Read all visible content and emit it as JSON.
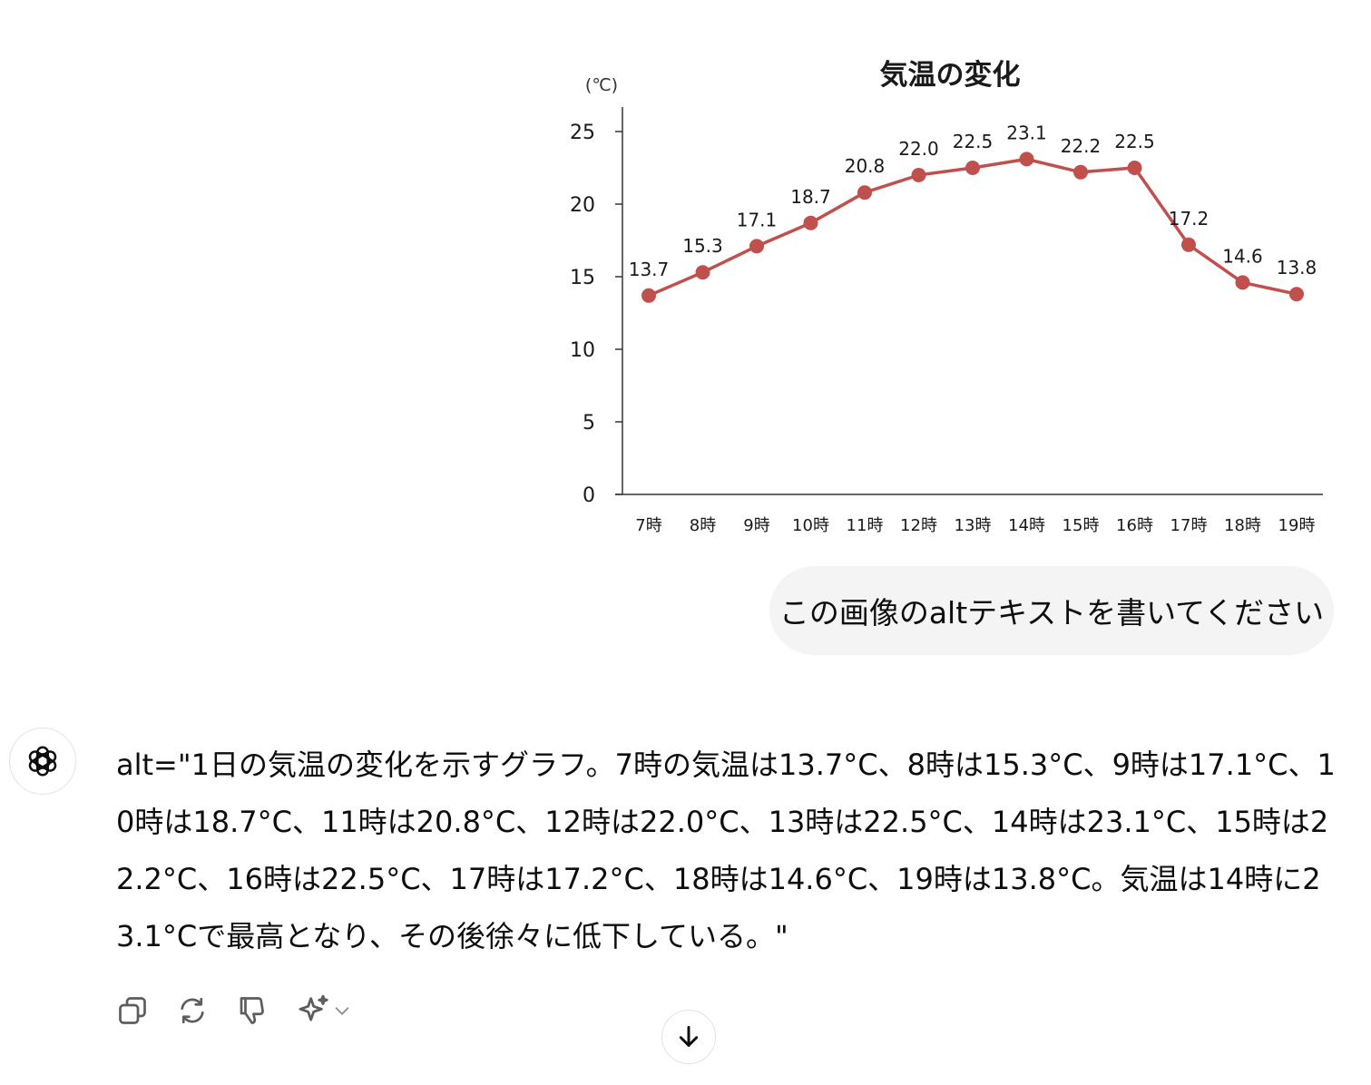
{
  "conversation": {
    "user_message": "この画像のaltテキストを書いてください",
    "assistant_message": "alt=\"1日の気温の変化を示すグラフ。7時の気温は13.7°C、8時は15.3°C、9時は17.1°C、10時は18.7°C、11時は20.8°C、12時は22.0°C、13時は22.5°C、14時は23.1°C、15時は22.2°C、16時は22.5°C、17時は17.2°C、18時は14.6°C、19時は13.8°C。気温は14時に23.1°Cで最高となり、その後徐々に低下している。\""
  },
  "icons": {
    "assistant_avatar": "openai-logo-icon",
    "copy": "copy-icon",
    "regenerate": "refresh-icon",
    "dislike": "thumbs-down-icon",
    "model_switch": "sparkle-icon",
    "scroll_down": "arrow-down-icon"
  },
  "colors": {
    "series": "#c0504d",
    "bubble": "#f4f4f4"
  },
  "chart_data": {
    "type": "line",
    "title": "気温の変化",
    "ylabel": "(℃)",
    "xlabel": "",
    "categories": [
      "7時",
      "8時",
      "9時",
      "10時",
      "11時",
      "12時",
      "13時",
      "14時",
      "15時",
      "16時",
      "17時",
      "18時",
      "19時"
    ],
    "values": [
      13.7,
      15.3,
      17.1,
      18.7,
      20.8,
      22.0,
      22.5,
      23.1,
      22.2,
      22.5,
      17.2,
      14.6,
      13.8
    ],
    "value_labels": [
      "13.7",
      "15.3",
      "17.1",
      "18.7",
      "20.8",
      "22.0",
      "22.5",
      "23.1",
      "22.2",
      "22.5",
      "17.2",
      "14.6",
      "13.8"
    ],
    "ylim": [
      0,
      25
    ],
    "yticks": [
      0,
      5,
      10,
      15,
      20,
      25
    ],
    "grid": false,
    "legend": "none"
  }
}
